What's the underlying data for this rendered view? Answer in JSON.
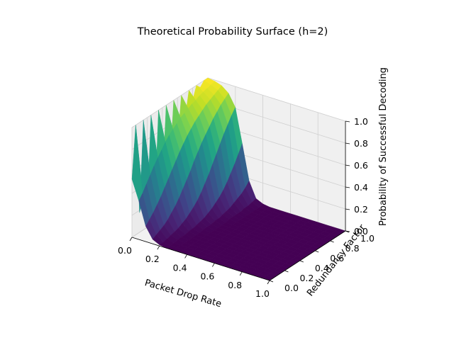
{
  "chart_data": {
    "type": "surface",
    "title": "Theoretical Probability Surface (h=2)",
    "xlabel": "Packet Drop Rate",
    "ylabel": "Redundancy Factor",
    "zlabel": "Probability of Successful Decoding",
    "xlim": [
      0,
      1
    ],
    "ylim": [
      0,
      1
    ],
    "zlim": [
      0,
      1
    ],
    "x_ticks": [
      "0.0",
      "0.2",
      "0.4",
      "0.6",
      "0.8",
      "1.0"
    ],
    "y_ticks": [
      "0.0",
      "0.2",
      "0.4",
      "0.6",
      "0.8",
      "1.0"
    ],
    "z_ticks": [
      "0.0",
      "0.2",
      "0.4",
      "0.6",
      "0.8",
      "1.0"
    ],
    "colormap": "viridis",
    "grid": true,
    "x": [
      0.0,
      0.05,
      0.1,
      0.15,
      0.2,
      0.25,
      0.3,
      0.35,
      0.4,
      0.45,
      0.5,
      0.55,
      0.6,
      0.65,
      0.7,
      0.75,
      0.8,
      0.85,
      0.9,
      0.95,
      1.0
    ],
    "y": [
      0.0,
      0.05,
      0.1,
      0.15,
      0.2,
      0.25,
      0.3,
      0.35,
      0.4,
      0.45,
      0.5,
      0.55,
      0.6,
      0.65,
      0.7,
      0.75,
      0.8,
      0.85,
      0.9,
      0.95,
      1.0
    ],
    "z": [
      [
        0.53,
        1.0,
        0.18,
        1.0,
        0.13,
        1.0,
        0.16,
        1.0,
        0.29,
        1.0,
        0.43,
        1.0,
        0.58,
        1.0,
        0.77,
        1.0,
        0.89,
        1.0,
        0.96,
        1.0,
        1.0
      ],
      [
        0.35,
        0.4,
        0.46,
        0.52,
        0.58,
        0.63,
        0.68,
        0.73,
        0.77,
        0.8,
        0.83,
        0.86,
        0.88,
        0.9,
        0.92,
        0.93,
        0.95,
        0.96,
        0.97,
        0.98,
        0.99
      ],
      [
        0.14,
        0.18,
        0.22,
        0.27,
        0.32,
        0.38,
        0.44,
        0.5,
        0.56,
        0.62,
        0.67,
        0.72,
        0.76,
        0.8,
        0.83,
        0.86,
        0.89,
        0.91,
        0.93,
        0.95,
        0.97
      ],
      [
        0.04,
        0.06,
        0.08,
        0.1,
        0.13,
        0.17,
        0.21,
        0.26,
        0.32,
        0.38,
        0.44,
        0.51,
        0.57,
        0.63,
        0.68,
        0.73,
        0.78,
        0.82,
        0.86,
        0.89,
        0.92
      ],
      [
        0.01,
        0.01,
        0.02,
        0.03,
        0.04,
        0.05,
        0.07,
        0.09,
        0.12,
        0.15,
        0.19,
        0.24,
        0.3,
        0.36,
        0.43,
        0.5,
        0.57,
        0.64,
        0.7,
        0.76,
        0.81
      ],
      [
        0.0,
        0.0,
        0.0,
        0.01,
        0.01,
        0.01,
        0.02,
        0.02,
        0.03,
        0.04,
        0.05,
        0.07,
        0.09,
        0.12,
        0.15,
        0.19,
        0.24,
        0.3,
        0.36,
        0.43,
        0.5
      ],
      [
        0.0,
        0.0,
        0.0,
        0.0,
        0.0,
        0.0,
        0.0,
        0.0,
        0.01,
        0.01,
        0.01,
        0.02,
        0.02,
        0.03,
        0.04,
        0.05,
        0.07,
        0.09,
        0.11,
        0.14,
        0.18
      ],
      [
        0.0,
        0.0,
        0.0,
        0.0,
        0.0,
        0.0,
        0.0,
        0.0,
        0.0,
        0.0,
        0.0,
        0.0,
        0.0,
        0.01,
        0.01,
        0.01,
        0.01,
        0.02,
        0.02,
        0.03,
        0.04
      ],
      [
        0.0,
        0.0,
        0.0,
        0.0,
        0.0,
        0.0,
        0.0,
        0.0,
        0.0,
        0.0,
        0.0,
        0.0,
        0.0,
        0.0,
        0.0,
        0.0,
        0.0,
        0.0,
        0.0,
        0.0,
        0.01
      ],
      [
        0.0,
        0.0,
        0.0,
        0.0,
        0.0,
        0.0,
        0.0,
        0.0,
        0.0,
        0.0,
        0.0,
        0.0,
        0.0,
        0.0,
        0.0,
        0.0,
        0.0,
        0.0,
        0.0,
        0.0,
        0.0
      ],
      [
        0.0,
        0.0,
        0.0,
        0.0,
        0.0,
        0.0,
        0.0,
        0.0,
        0.0,
        0.0,
        0.0,
        0.0,
        0.0,
        0.0,
        0.0,
        0.0,
        0.0,
        0.0,
        0.0,
        0.0,
        0.0
      ],
      [
        0.0,
        0.0,
        0.0,
        0.0,
        0.0,
        0.0,
        0.0,
        0.0,
        0.0,
        0.0,
        0.0,
        0.0,
        0.0,
        0.0,
        0.0,
        0.0,
        0.0,
        0.0,
        0.0,
        0.0,
        0.0
      ],
      [
        0.0,
        0.0,
        0.0,
        0.0,
        0.0,
        0.0,
        0.0,
        0.0,
        0.0,
        0.0,
        0.0,
        0.0,
        0.0,
        0.0,
        0.0,
        0.0,
        0.0,
        0.0,
        0.0,
        0.0,
        0.0
      ],
      [
        0.0,
        0.0,
        0.0,
        0.0,
        0.0,
        0.0,
        0.0,
        0.0,
        0.0,
        0.0,
        0.0,
        0.0,
        0.0,
        0.0,
        0.0,
        0.0,
        0.0,
        0.0,
        0.0,
        0.0,
        0.0
      ],
      [
        0.0,
        0.0,
        0.0,
        0.0,
        0.0,
        0.0,
        0.0,
        0.0,
        0.0,
        0.0,
        0.0,
        0.0,
        0.0,
        0.0,
        0.0,
        0.0,
        0.0,
        0.0,
        0.0,
        0.0,
        0.0
      ],
      [
        0.0,
        0.0,
        0.0,
        0.0,
        0.0,
        0.0,
        0.0,
        0.0,
        0.0,
        0.0,
        0.0,
        0.0,
        0.0,
        0.0,
        0.0,
        0.0,
        0.0,
        0.0,
        0.0,
        0.0,
        0.0
      ],
      [
        0.0,
        0.0,
        0.0,
        0.0,
        0.0,
        0.0,
        0.0,
        0.0,
        0.0,
        0.0,
        0.0,
        0.0,
        0.0,
        0.0,
        0.0,
        0.0,
        0.0,
        0.0,
        0.0,
        0.0,
        0.0
      ],
      [
        0.0,
        0.0,
        0.0,
        0.0,
        0.0,
        0.0,
        0.0,
        0.0,
        0.0,
        0.0,
        0.0,
        0.0,
        0.0,
        0.0,
        0.0,
        0.0,
        0.0,
        0.0,
        0.0,
        0.0,
        0.0
      ],
      [
        0.0,
        0.0,
        0.0,
        0.0,
        0.0,
        0.0,
        0.0,
        0.0,
        0.0,
        0.0,
        0.0,
        0.0,
        0.0,
        0.0,
        0.0,
        0.0,
        0.0,
        0.0,
        0.0,
        0.0,
        0.0
      ],
      [
        0.0,
        0.0,
        0.0,
        0.0,
        0.0,
        0.0,
        0.0,
        0.0,
        0.0,
        0.0,
        0.0,
        0.0,
        0.0,
        0.0,
        0.0,
        0.0,
        0.0,
        0.0,
        0.0,
        0.0,
        0.0
      ],
      [
        0.0,
        0.0,
        0.0,
        0.0,
        0.0,
        0.0,
        0.0,
        0.0,
        0.0,
        0.0,
        0.0,
        0.0,
        0.0,
        0.0,
        0.0,
        0.0,
        0.0,
        0.0,
        0.0,
        0.0,
        0.0
      ]
    ]
  }
}
